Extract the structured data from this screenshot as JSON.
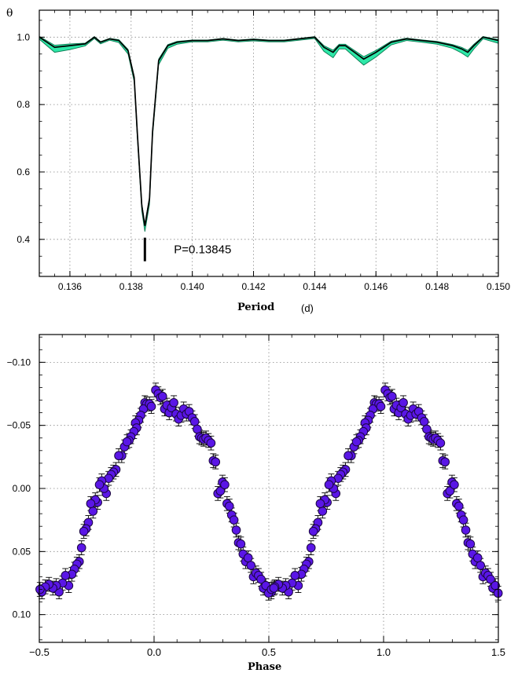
{
  "chart_data": [
    {
      "type": "line",
      "ylabel": "θ",
      "xlabel": "Period",
      "xunit": "(d)",
      "xlim": [
        0.135,
        0.15
      ],
      "ylim": [
        0.29,
        1.08
      ],
      "xticks": [
        0.136,
        0.138,
        0.14,
        0.142,
        0.144,
        0.146,
        0.148,
        0.15
      ],
      "xtick_labels": [
        "0.136",
        "0.138",
        "0.140",
        "0.142",
        "0.144",
        "0.146",
        "0.148",
        "0.150"
      ],
      "yticks": [
        0.4,
        0.6,
        0.8,
        1.0
      ],
      "ytick_labels": [
        "0.4",
        "0.6",
        "0.8",
        "1.0"
      ],
      "grid": true,
      "band_color": "#2ee8a8",
      "line_color": "#000000",
      "curve": {
        "x": [
          0.135,
          0.1355,
          0.136,
          0.1365,
          0.1368,
          0.137,
          0.1373,
          0.1376,
          0.1379,
          0.1381,
          0.1382,
          0.13835,
          0.13845,
          0.1386,
          0.1387,
          0.1389,
          0.1392,
          0.1395,
          0.14,
          0.1405,
          0.141,
          0.1415,
          0.142,
          0.1425,
          0.143,
          0.1435,
          0.144,
          0.1443,
          0.1446,
          0.1448,
          0.145,
          0.1453,
          0.1456,
          0.146,
          0.1465,
          0.147,
          0.1475,
          0.148,
          0.1485,
          0.1488,
          0.149,
          0.1492,
          0.1495,
          0.15
        ],
        "y": [
          1.0,
          0.97,
          0.975,
          0.98,
          1.0,
          0.985,
          0.995,
          0.99,
          0.96,
          0.88,
          0.72,
          0.5,
          0.44,
          0.52,
          0.72,
          0.93,
          0.975,
          0.985,
          0.99,
          0.99,
          0.995,
          0.99,
          0.993,
          0.99,
          0.99,
          0.995,
          1.0,
          0.97,
          0.955,
          0.975,
          0.975,
          0.955,
          0.935,
          0.955,
          0.985,
          0.995,
          0.99,
          0.985,
          0.975,
          0.965,
          0.955,
          0.975,
          1.0,
          0.99
        ],
        "band": [
          0.006,
          0.015,
          0.012,
          0.006,
          0.004,
          0.005,
          0.004,
          0.006,
          0.01,
          0.012,
          0.014,
          0.016,
          0.017,
          0.016,
          0.014,
          0.012,
          0.008,
          0.006,
          0.004,
          0.004,
          0.004,
          0.004,
          0.004,
          0.004,
          0.004,
          0.004,
          0.004,
          0.012,
          0.016,
          0.01,
          0.01,
          0.014,
          0.018,
          0.014,
          0.008,
          0.005,
          0.005,
          0.006,
          0.008,
          0.012,
          0.014,
          0.01,
          0.005,
          0.008
        ]
      },
      "marker": {
        "x": 0.13845,
        "y_from": 0.335,
        "y_to": 0.405
      },
      "annotation": {
        "text": "P=0.13845",
        "x": 0.1394,
        "y": 0.37
      }
    },
    {
      "type": "scatter",
      "xlabel": "Phase",
      "ylabel": "",
      "xlim": [
        -0.5,
        1.5
      ],
      "ylim": [
        0.122,
        -0.122
      ],
      "xticks": [
        -0.5,
        0.0,
        0.5,
        1.0,
        1.5
      ],
      "xtick_labels": [
        "−0.5",
        "0.0",
        "0.5",
        "1.0",
        "1.5"
      ],
      "yticks": [
        -0.1,
        -0.05,
        0.0,
        0.05,
        0.1
      ],
      "ytick_labels": [
        "−0.10",
        "−0.05",
        "0.00",
        "0.05",
        "0.10"
      ],
      "grid": true,
      "marker_color": "#5a16e6",
      "error": 0.0055,
      "series": [
        {
          "x": [
            0.007,
            0.018,
            0.028,
            0.037,
            -0.04,
            -0.032,
            -0.046,
            -0.02,
            -0.012,
            -0.058,
            -0.067,
            -0.081,
            -0.076,
            -0.088,
            -0.101,
            -0.109,
            -0.129,
            -0.118,
            -0.141,
            -0.154,
            -0.166,
            -0.177,
            -0.187,
            -0.198,
            -0.208,
            -0.218,
            -0.228,
            -0.238,
            -0.246,
            -0.256,
            -0.266,
            -0.276,
            -0.286,
            -0.296,
            -0.306,
            -0.316,
            -0.326,
            -0.336,
            -0.347,
            -0.358,
            -0.372,
            -0.386,
            -0.399,
            -0.414,
            -0.426,
            -0.441,
            -0.458,
            -0.474,
            -0.489,
            -0.497,
            0.046,
            0.056,
            0.066,
            0.076,
            0.086,
            0.096,
            0.107,
            0.118,
            0.129,
            0.141,
            0.153,
            0.166,
            0.177,
            0.188,
            0.198,
            0.207,
            0.216,
            0.226,
            0.237,
            0.248,
            0.258,
            0.268,
            0.278,
            0.289,
            0.298,
            0.308,
            0.318,
            0.328,
            0.338,
            0.348,
            0.358,
            0.368,
            0.378,
            0.388,
            0.399,
            0.41,
            0.422,
            0.433,
            0.444,
            0.455,
            0.466,
            0.476,
            0.487,
            0.499,
            0.511,
            0.522
          ],
          "y": [
            -0.078,
            -0.075,
            -0.072,
            -0.073,
            -0.068,
            -0.067,
            -0.063,
            -0.067,
            -0.065,
            -0.058,
            -0.054,
            -0.052,
            -0.048,
            -0.045,
            -0.041,
            -0.038,
            -0.033,
            -0.037,
            -0.026,
            -0.026,
            -0.015,
            -0.013,
            -0.011,
            -0.008,
            0.004,
            0.0,
            -0.006,
            -0.003,
            0.011,
            0.009,
            0.018,
            0.012,
            0.027,
            0.032,
            0.034,
            0.047,
            0.058,
            0.06,
            0.064,
            0.068,
            0.077,
            0.069,
            0.075,
            0.082,
            0.077,
            0.079,
            0.076,
            0.078,
            0.082,
            0.08,
            -0.063,
            -0.066,
            -0.06,
            -0.064,
            -0.068,
            -0.059,
            -0.055,
            -0.058,
            -0.063,
            -0.059,
            -0.061,
            -0.056,
            -0.053,
            -0.047,
            -0.041,
            -0.04,
            -0.039,
            -0.04,
            -0.038,
            -0.036,
            -0.022,
            -0.021,
            0.004,
            0.002,
            -0.005,
            -0.003,
            0.012,
            0.014,
            0.021,
            0.025,
            0.033,
            0.043,
            0.044,
            0.052,
            0.058,
            0.055,
            0.061,
            0.07,
            0.067,
            0.069,
            0.072,
            0.079,
            0.077,
            0.083,
            0.08,
            0.079
          ]
        }
      ]
    }
  ]
}
